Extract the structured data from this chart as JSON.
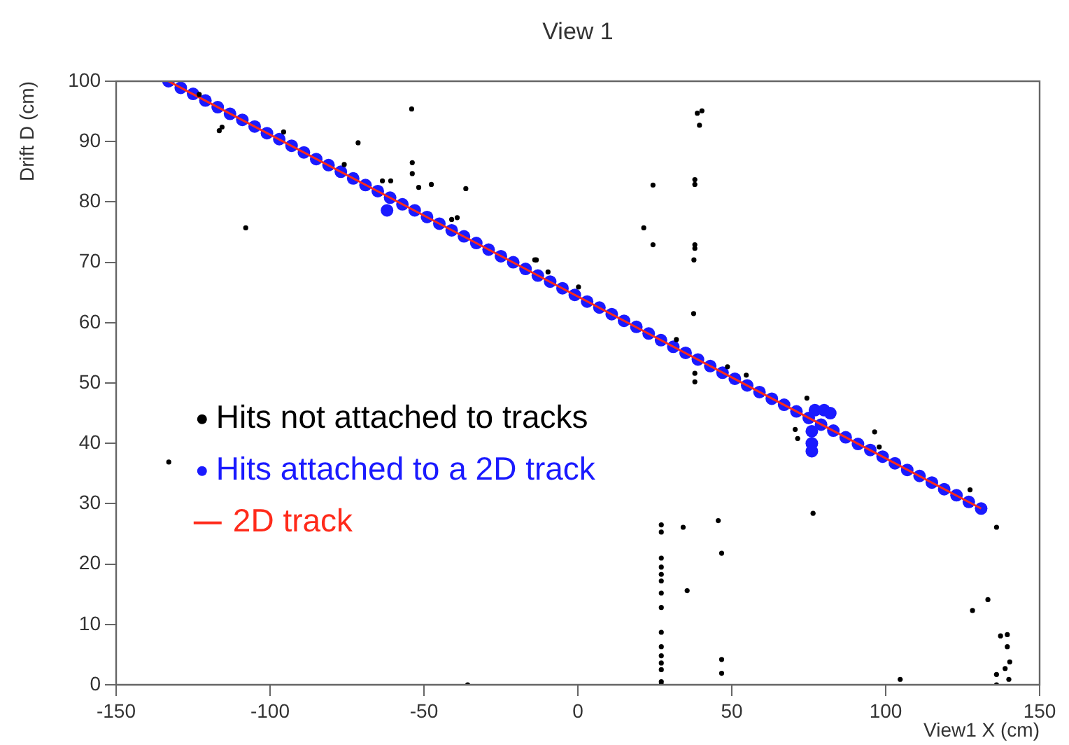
{
  "chart_data": {
    "type": "scatter",
    "title": "View 1",
    "xlabel": "View1 X (cm)",
    "ylabel": "Drift D (cm)",
    "xlim": [
      -150,
      150
    ],
    "xticks": [
      -150,
      -100,
      -50,
      0,
      50,
      100,
      150
    ],
    "ylim": [
      0,
      100
    ],
    "yticks": [
      0,
      10,
      20,
      30,
      40,
      50,
      60,
      70,
      80,
      90,
      100
    ],
    "grid": false,
    "legend": "left",
    "series": [
      {
        "name": "Hits not attached to tracks",
        "color": "#000000",
        "marker": "circle",
        "x": [
          -107.9,
          -116.5,
          -115.6,
          -95.6,
          -71.4,
          -75.9,
          -54,
          -53.8,
          -53.8,
          -63.5,
          -60.8,
          -51.7,
          -47.6,
          -36.4,
          -41,
          -39.2,
          -14,
          -9.7,
          -123,
          38.8,
          40.3,
          39.5,
          24.4,
          38,
          38,
          21.4,
          24.4,
          38,
          38,
          37.7,
          37.6,
          38,
          38,
          -13.5,
          0.2,
          32,
          48.6,
          54.7,
          74.4,
          -132.9,
          -35.8,
          27.1,
          27.1,
          27.1,
          27.1,
          27.1,
          27.1,
          27.1,
          27.1,
          27.1,
          27.1,
          27.1,
          27.1,
          27.1,
          27.1,
          27.1,
          34.2,
          45.6,
          46.7,
          35.5,
          46.7,
          46.7,
          76.4,
          136,
          133.2,
          128.2,
          137.3,
          139.5,
          139.5,
          140.3,
          138.8,
          136,
          140,
          136,
          104.7,
          96.4,
          97.9,
          127.4,
          71.4,
          70.6
        ],
        "values": [
          75.7,
          91.8,
          92.4,
          91.6,
          89.8,
          86.2,
          95.4,
          86.5,
          84.7,
          83.5,
          83.5,
          82.4,
          82.9,
          82.2,
          77.1,
          77.4,
          70.4,
          68.4,
          97.8,
          94.7,
          95.1,
          92.7,
          82.8,
          83.7,
          82.9,
          75.7,
          72.9,
          72.9,
          72.3,
          70.4,
          61.5,
          51.6,
          50.2,
          70.4,
          65.9,
          57.2,
          52.7,
          51.3,
          47.5,
          36.9,
          0,
          26.5,
          25.3,
          21,
          19.5,
          18.3,
          17.2,
          15.2,
          12.8,
          8.7,
          6.3,
          4.8,
          3.6,
          2.5,
          0.5,
          0,
          26.1,
          27.2,
          21.8,
          15.6,
          4.2,
          1.9,
          28.4,
          26.1,
          14.1,
          12.3,
          8.1,
          8.3,
          6.3,
          3.8,
          2.7,
          1.7,
          0.9,
          0,
          0.9,
          41.9,
          39.4,
          32.3,
          40.8,
          42.3
        ]
      },
      {
        "name": "Hits attached to a 2D track",
        "color": "#1a1aff",
        "marker": "circle",
        "x": [
          -133,
          -129,
          -125,
          -121,
          -117,
          -113,
          -109,
          -105,
          -101,
          -97,
          -93,
          -89,
          -85,
          -81,
          -77,
          -73,
          -69,
          -65,
          -61,
          -57,
          -53,
          -49,
          -45,
          -41,
          -37,
          -33,
          -29,
          -25,
          -21,
          -17,
          -13,
          -9,
          -5,
          -1,
          3,
          7,
          11,
          15,
          19,
          23,
          27,
          31,
          35,
          39,
          43,
          47,
          51,
          55,
          59,
          63,
          67,
          71,
          75,
          79,
          83,
          87,
          91,
          95,
          99,
          103,
          107,
          111,
          115,
          119,
          123,
          127,
          131,
          77,
          80,
          82,
          76,
          76,
          76,
          -62
        ],
        "values": [
          100,
          98.9,
          97.9,
          96.8,
          95.7,
          94.6,
          93.6,
          92.5,
          91.4,
          90.4,
          89.3,
          88.2,
          87.1,
          86.1,
          85,
          83.9,
          82.8,
          81.8,
          80.7,
          79.6,
          78.6,
          77.5,
          76.4,
          75.3,
          74.3,
          73.2,
          72.1,
          71,
          70,
          68.9,
          67.8,
          66.8,
          65.7,
          64.6,
          63.5,
          62.5,
          61.4,
          60.3,
          59.3,
          58.2,
          57.1,
          56,
          55,
          53.9,
          52.8,
          51.7,
          50.7,
          49.6,
          48.5,
          47.4,
          46.4,
          45.3,
          44.2,
          43.1,
          42.1,
          41,
          39.9,
          38.9,
          37.8,
          36.7,
          35.6,
          34.6,
          33.5,
          32.4,
          31.4,
          30.3,
          29.2,
          45.5,
          45.5,
          45,
          42,
          40,
          38.7,
          78.6
        ]
      },
      {
        "name": "2D track",
        "type": "line",
        "color": "#ff2a1a",
        "marker": "none",
        "x": [
          -133,
          131
        ],
        "values": [
          100,
          29.2
        ]
      }
    ]
  }
}
